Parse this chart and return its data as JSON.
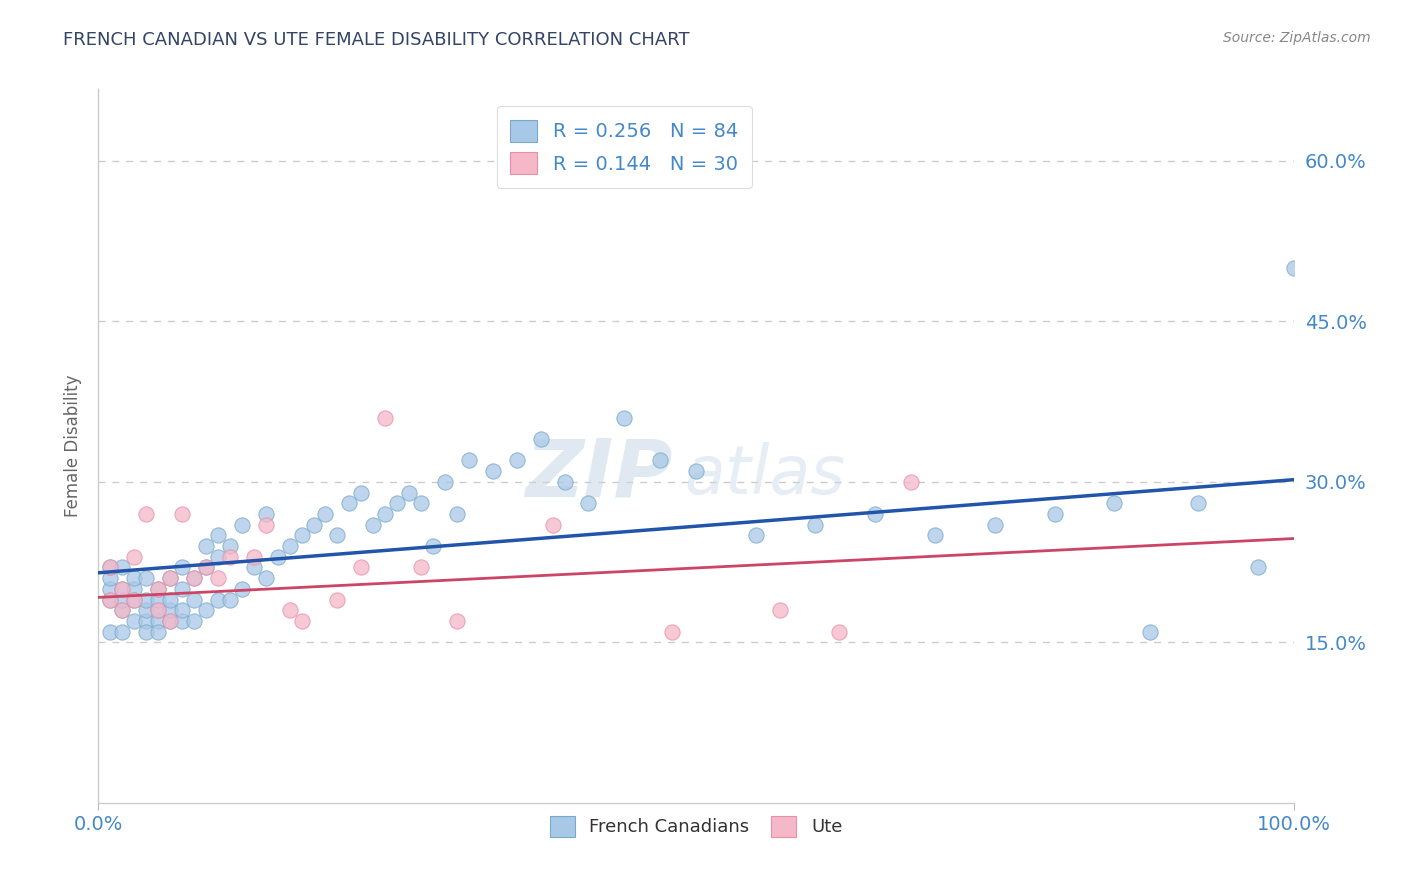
{
  "title": "FRENCH CANADIAN VS UTE FEMALE DISABILITY CORRELATION CHART",
  "source": "Source: ZipAtlas.com",
  "ylabel": "Female Disability",
  "xlim": [
    0,
    1.0
  ],
  "ylim": [
    0.0,
    0.667
  ],
  "xtick_labels": [
    "0.0%",
    "100.0%"
  ],
  "ytick_labels": [
    "15.0%",
    "30.0%",
    "45.0%",
    "60.0%"
  ],
  "ytick_vals": [
    0.15,
    0.3,
    0.45,
    0.6
  ],
  "legend_entry1": "R = 0.256   N = 84",
  "legend_entry2": "R = 0.144   N = 30",
  "blue_color": "#a8c8e8",
  "pink_color": "#f4b8c8",
  "blue_edge_color": "#7aaac8",
  "pink_edge_color": "#e890a8",
  "blue_line_color": "#2255aa",
  "pink_line_color": "#cc4466",
  "axis_label_color": "#4488cc",
  "title_color": "#334466",
  "watermark_zip": "ZIP",
  "watermark_atlas": "atlas",
  "background_color": "#ffffff",
  "grid_color": "#cccccc",
  "blue_line_x0": 0.0,
  "blue_line_y0": 0.215,
  "blue_line_x1": 1.0,
  "blue_line_y1": 0.302,
  "pink_line_x0": 0.0,
  "pink_line_y0": 0.192,
  "pink_line_x1": 1.0,
  "pink_line_y1": 0.247,
  "blue_scatter_x": [
    0.01,
    0.01,
    0.01,
    0.01,
    0.01,
    0.02,
    0.02,
    0.02,
    0.02,
    0.02,
    0.03,
    0.03,
    0.03,
    0.03,
    0.04,
    0.04,
    0.04,
    0.04,
    0.04,
    0.05,
    0.05,
    0.05,
    0.05,
    0.05,
    0.06,
    0.06,
    0.06,
    0.06,
    0.07,
    0.07,
    0.07,
    0.07,
    0.08,
    0.08,
    0.08,
    0.09,
    0.09,
    0.09,
    0.1,
    0.1,
    0.1,
    0.11,
    0.11,
    0.12,
    0.12,
    0.13,
    0.14,
    0.14,
    0.15,
    0.16,
    0.17,
    0.18,
    0.19,
    0.2,
    0.21,
    0.22,
    0.23,
    0.24,
    0.25,
    0.26,
    0.27,
    0.28,
    0.29,
    0.3,
    0.31,
    0.33,
    0.35,
    0.37,
    0.39,
    0.41,
    0.44,
    0.47,
    0.5,
    0.55,
    0.6,
    0.65,
    0.7,
    0.75,
    0.8,
    0.85,
    0.88,
    0.92,
    0.97,
    1.0
  ],
  "blue_scatter_y": [
    0.19,
    0.2,
    0.21,
    0.22,
    0.16,
    0.18,
    0.19,
    0.2,
    0.22,
    0.16,
    0.17,
    0.2,
    0.19,
    0.21,
    0.17,
    0.18,
    0.19,
    0.16,
    0.21,
    0.17,
    0.18,
    0.19,
    0.16,
    0.2,
    0.17,
    0.18,
    0.19,
    0.21,
    0.17,
    0.18,
    0.2,
    0.22,
    0.17,
    0.19,
    0.21,
    0.18,
    0.22,
    0.24,
    0.19,
    0.23,
    0.25,
    0.19,
    0.24,
    0.2,
    0.26,
    0.22,
    0.21,
    0.27,
    0.23,
    0.24,
    0.25,
    0.26,
    0.27,
    0.25,
    0.28,
    0.29,
    0.26,
    0.27,
    0.28,
    0.29,
    0.28,
    0.24,
    0.3,
    0.27,
    0.32,
    0.31,
    0.32,
    0.34,
    0.3,
    0.28,
    0.36,
    0.32,
    0.31,
    0.25,
    0.26,
    0.27,
    0.25,
    0.26,
    0.27,
    0.28,
    0.16,
    0.28,
    0.22,
    0.5
  ],
  "pink_scatter_x": [
    0.01,
    0.01,
    0.02,
    0.02,
    0.03,
    0.03,
    0.04,
    0.05,
    0.05,
    0.06,
    0.06,
    0.07,
    0.08,
    0.09,
    0.1,
    0.11,
    0.13,
    0.14,
    0.16,
    0.17,
    0.2,
    0.22,
    0.24,
    0.27,
    0.3,
    0.38,
    0.48,
    0.57,
    0.62,
    0.68
  ],
  "pink_scatter_y": [
    0.19,
    0.22,
    0.18,
    0.2,
    0.19,
    0.23,
    0.27,
    0.18,
    0.2,
    0.17,
    0.21,
    0.27,
    0.21,
    0.22,
    0.21,
    0.23,
    0.23,
    0.26,
    0.18,
    0.17,
    0.19,
    0.22,
    0.36,
    0.22,
    0.17,
    0.26,
    0.16,
    0.18,
    0.16,
    0.3
  ]
}
